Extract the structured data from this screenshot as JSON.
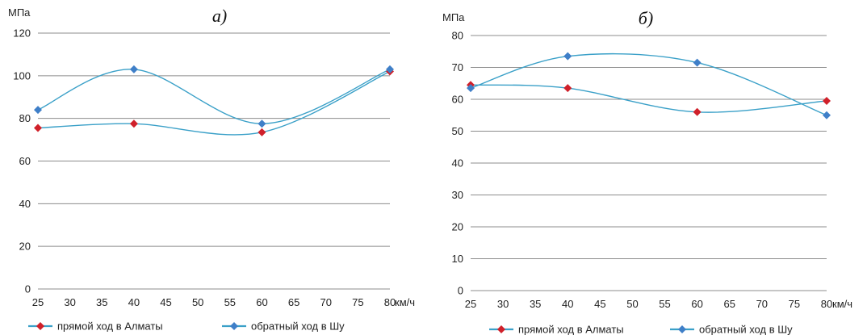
{
  "chart_data": [
    {
      "type": "line",
      "title": "а)",
      "ylabel": "МПа",
      "xunit": "км/ч",
      "x_ticks": [
        25,
        30,
        35,
        40,
        45,
        50,
        55,
        60,
        65,
        70,
        75,
        80
      ],
      "y_ticks": [
        0,
        20,
        40,
        60,
        80,
        100,
        120
      ],
      "xlim": [
        25,
        80
      ],
      "ylim": [
        0,
        120
      ],
      "grid": true,
      "smooth": true,
      "legend_position": "bottom",
      "series": [
        {
          "name": "прямой ход в Алматы",
          "color": "#d0202a",
          "line_color": "#3aa0c8",
          "x": [
            25,
            40,
            60,
            80
          ],
          "y": [
            75.5,
            77.5,
            73.5,
            102
          ]
        },
        {
          "name": "обратный ход в Шу",
          "color": "#3f7fc8",
          "line_color": "#3aa0c8",
          "x": [
            25,
            40,
            60,
            80
          ],
          "y": [
            84,
            103,
            77.5,
            103
          ]
        }
      ]
    },
    {
      "type": "line",
      "title": "б)",
      "ylabel": "МПа",
      "xunit": "км/ч",
      "x_ticks": [
        25,
        30,
        35,
        40,
        45,
        50,
        55,
        60,
        65,
        70,
        75,
        80
      ],
      "y_ticks": [
        0,
        10,
        20,
        30,
        40,
        50,
        60,
        70,
        80
      ],
      "xlim": [
        25,
        80
      ],
      "ylim": [
        0,
        80
      ],
      "grid": true,
      "smooth": true,
      "legend_position": "bottom",
      "series": [
        {
          "name": "прямой ход в Алматы",
          "color": "#d0202a",
          "line_color": "#3aa0c8",
          "x": [
            25,
            40,
            60,
            80
          ],
          "y": [
            64.5,
            63.5,
            56,
            59.5
          ]
        },
        {
          "name": "обратный ход в Шу",
          "color": "#3f7fc8",
          "line_color": "#3aa0c8",
          "x": [
            25,
            40,
            60,
            80
          ],
          "y": [
            63.5,
            73.5,
            71.5,
            55
          ]
        }
      ]
    }
  ]
}
